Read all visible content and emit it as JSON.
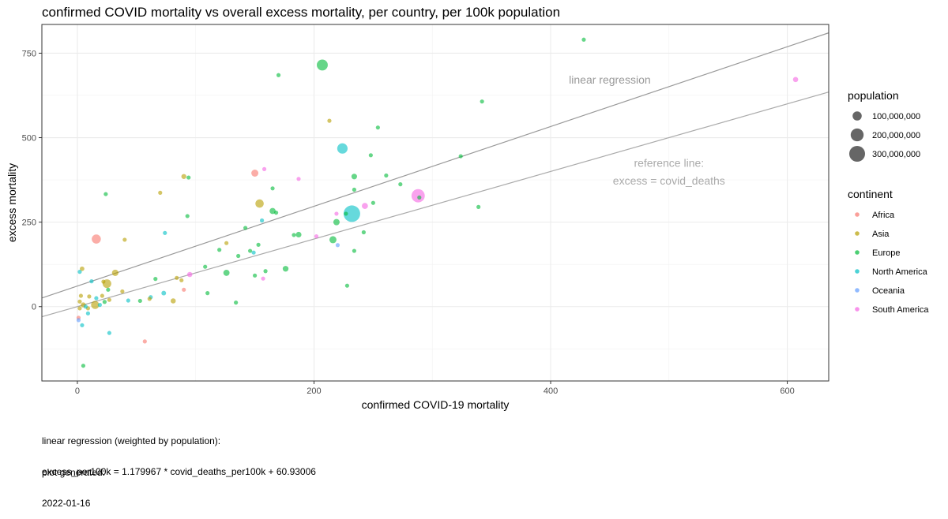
{
  "chart_data": {
    "type": "scatter",
    "title": "confirmed COVID mortality vs overall excess mortality, per country, per 100k population",
    "xlabel": "confirmed COVID-19 mortality",
    "ylabel": "excess mortality",
    "xlim": [
      -30,
      635
    ],
    "ylim": [
      -220,
      835
    ],
    "x_ticks": [
      0,
      200,
      400,
      600
    ],
    "y_ticks": [
      0,
      250,
      500,
      750
    ],
    "x_tick_labels": [
      "0",
      "200",
      "400",
      "600"
    ],
    "y_tick_labels": [
      "0",
      "250",
      "500",
      "750"
    ],
    "grid": true,
    "legend_position": "right",
    "size_legend": {
      "title": "population",
      "entries": [
        {
          "label": "100,000,000",
          "value": 100000000
        },
        {
          "label": "200,000,000",
          "value": 200000000
        },
        {
          "label": "300,000,000",
          "value": 300000000
        }
      ]
    },
    "color_legend": {
      "title": "continent",
      "entries": [
        {
          "label": "Africa",
          "color": "#F8766D"
        },
        {
          "label": "Asia",
          "color": "#B79F00"
        },
        {
          "label": "Europe",
          "color": "#00BA38"
        },
        {
          "label": "North America",
          "color": "#00BFC4"
        },
        {
          "label": "Oceania",
          "color": "#619CFF"
        },
        {
          "label": "South America",
          "color": "#F564E3"
        }
      ]
    },
    "lines": [
      {
        "name": "linear regression",
        "slope": 1.179967,
        "intercept": 60.93006,
        "color": "#999999",
        "label_x": 450,
        "label_y": 672
      },
      {
        "name": "reference line: excess = covid_deaths",
        "slope": 1,
        "intercept": 0,
        "color": "#aaaaaa",
        "label_x": 500,
        "label_y": 390
      }
    ],
    "annotations": [
      {
        "text": "linear regression",
        "x": 450,
        "y": 672
      },
      {
        "text": "reference line:",
        "x": 500,
        "y": 425
      },
      {
        "text": "excess = covid_deaths",
        "x": 500,
        "y": 373
      }
    ],
    "points": [
      {
        "x": 428,
        "y": 790,
        "continent": "Europe",
        "pop": 2000000
      },
      {
        "x": 207,
        "y": 715,
        "continent": "Europe",
        "pop": 145000000
      },
      {
        "x": 170,
        "y": 685,
        "continent": "Europe",
        "pop": 7000000
      },
      {
        "x": 607,
        "y": 672,
        "continent": "South America",
        "pop": 33000000
      },
      {
        "x": 342,
        "y": 607,
        "continent": "Europe",
        "pop": 2800000
      },
      {
        "x": 213,
        "y": 550,
        "continent": "Asia",
        "pop": 3000000
      },
      {
        "x": 254,
        "y": 530,
        "continent": "Europe",
        "pop": 4000000
      },
      {
        "x": 224,
        "y": 468,
        "continent": "North America",
        "pop": 129000000
      },
      {
        "x": 248,
        "y": 448,
        "continent": "Europe",
        "pop": 19000000
      },
      {
        "x": 324,
        "y": 445,
        "continent": "Europe",
        "pop": 2000000
      },
      {
        "x": 150,
        "y": 395,
        "continent": "Africa",
        "pop": 60000000
      },
      {
        "x": 158,
        "y": 407,
        "continent": "South America",
        "pop": 12000000
      },
      {
        "x": 90,
        "y": 385,
        "continent": "Asia",
        "pop": 30000000
      },
      {
        "x": 94,
        "y": 382,
        "continent": "Europe",
        "pop": 4000000
      },
      {
        "x": 187,
        "y": 378,
        "continent": "South America",
        "pop": 19000000
      },
      {
        "x": 234,
        "y": 385,
        "continent": "Europe",
        "pop": 38000000
      },
      {
        "x": 261,
        "y": 388,
        "continent": "Europe",
        "pop": 9000000
      },
      {
        "x": 273,
        "y": 362,
        "continent": "Europe",
        "pop": 2000000
      },
      {
        "x": 165,
        "y": 350,
        "continent": "Europe",
        "pop": 5000000
      },
      {
        "x": 234,
        "y": 346,
        "continent": "Europe",
        "pop": 4000000
      },
      {
        "x": 24,
        "y": 333,
        "continent": "Europe",
        "pop": 10000000
      },
      {
        "x": 70,
        "y": 337,
        "continent": "Asia",
        "pop": 17000000
      },
      {
        "x": 288,
        "y": 328,
        "continent": "South America",
        "pop": 213000000
      },
      {
        "x": 289,
        "y": 323,
        "continent": "Europe",
        "pop": 10000000
      },
      {
        "x": 154,
        "y": 305,
        "continent": "Asia",
        "pop": 84000000
      },
      {
        "x": 243,
        "y": 298,
        "continent": "South America",
        "pop": 45000000
      },
      {
        "x": 250,
        "y": 307,
        "continent": "Europe",
        "pop": 2000000
      },
      {
        "x": 232,
        "y": 275,
        "continent": "North America",
        "pop": 330000000
      },
      {
        "x": 339,
        "y": 295,
        "continent": "Europe",
        "pop": 7000000
      },
      {
        "x": 165,
        "y": 283,
        "continent": "Europe",
        "pop": 44000000
      },
      {
        "x": 168,
        "y": 278,
        "continent": "Europe",
        "pop": 9000000
      },
      {
        "x": 219,
        "y": 275,
        "continent": "South America",
        "pop": 11000000
      },
      {
        "x": 227,
        "y": 275,
        "continent": "Europe",
        "pop": 2000000
      },
      {
        "x": 93,
        "y": 268,
        "continent": "Europe",
        "pop": 3000000
      },
      {
        "x": 156,
        "y": 255,
        "continent": "North America",
        "pop": 2000000
      },
      {
        "x": 219,
        "y": 250,
        "continent": "Europe",
        "pop": 48000000
      },
      {
        "x": 142,
        "y": 233,
        "continent": "Europe",
        "pop": 3000000
      },
      {
        "x": 16,
        "y": 200,
        "continent": "Africa",
        "pop": 100000000
      },
      {
        "x": 74,
        "y": 218,
        "continent": "North America",
        "pop": 15000000
      },
      {
        "x": 40,
        "y": 198,
        "continent": "Asia",
        "pop": 8000000
      },
      {
        "x": 187,
        "y": 213,
        "continent": "Europe",
        "pop": 38000000
      },
      {
        "x": 183,
        "y": 212,
        "continent": "Europe",
        "pop": 10000000
      },
      {
        "x": 216,
        "y": 198,
        "continent": "Europe",
        "pop": 60000000
      },
      {
        "x": 202,
        "y": 208,
        "continent": "South America",
        "pop": 17000000
      },
      {
        "x": 242,
        "y": 220,
        "continent": "Europe",
        "pop": 5000000
      },
      {
        "x": 126,
        "y": 188,
        "continent": "Asia",
        "pop": 6000000
      },
      {
        "x": 153,
        "y": 183,
        "continent": "Europe",
        "pop": 10000000
      },
      {
        "x": 220,
        "y": 182,
        "continent": "Oceania",
        "pop": 5000000
      },
      {
        "x": 120,
        "y": 168,
        "continent": "Europe",
        "pop": 11000000
      },
      {
        "x": 146,
        "y": 165,
        "continent": "Europe",
        "pop": 10000000
      },
      {
        "x": 149,
        "y": 160,
        "continent": "North America",
        "pop": 5000000
      },
      {
        "x": 234,
        "y": 165,
        "continent": "Europe",
        "pop": 10000000
      },
      {
        "x": 136,
        "y": 150,
        "continent": "Europe",
        "pop": 7000000
      },
      {
        "x": 4,
        "y": 112,
        "continent": "Asia",
        "pop": 25000000
      },
      {
        "x": 176,
        "y": 112,
        "continent": "Europe",
        "pop": 40000000
      },
      {
        "x": 126,
        "y": 100,
        "continent": "Europe",
        "pop": 46000000
      },
      {
        "x": 32,
        "y": 100,
        "continent": "Asia",
        "pop": 50000000
      },
      {
        "x": 2,
        "y": 103,
        "continent": "North America",
        "pop": 3000000
      },
      {
        "x": 108,
        "y": 118,
        "continent": "Europe",
        "pop": 2000000
      },
      {
        "x": 95,
        "y": 95,
        "continent": "South America",
        "pop": 32000000
      },
      {
        "x": 159,
        "y": 105,
        "continent": "Europe",
        "pop": 2000000
      },
      {
        "x": 150,
        "y": 92,
        "continent": "Europe",
        "pop": 9000000
      },
      {
        "x": 84,
        "y": 85,
        "continent": "Asia",
        "pop": 6000000
      },
      {
        "x": 157,
        "y": 83,
        "continent": "South America",
        "pop": 7000000
      },
      {
        "x": 66,
        "y": 82,
        "continent": "Europe",
        "pop": 3000000
      },
      {
        "x": 88,
        "y": 78,
        "continent": "Asia",
        "pop": 7000000
      },
      {
        "x": 12,
        "y": 75,
        "continent": "North America",
        "pop": 7000000
      },
      {
        "x": 22,
        "y": 74,
        "continent": "Asia",
        "pop": 8000000
      },
      {
        "x": 25,
        "y": 68,
        "continent": "Asia",
        "pop": 90000000
      },
      {
        "x": 26,
        "y": 50,
        "continent": "Europe",
        "pop": 6000000
      },
      {
        "x": 90,
        "y": 50,
        "continent": "Africa",
        "pop": 11000000
      },
      {
        "x": 38,
        "y": 45,
        "continent": "Asia",
        "pop": 6000000
      },
      {
        "x": 73,
        "y": 40,
        "continent": "North America",
        "pop": 26000000
      },
      {
        "x": 110,
        "y": 40,
        "continent": "Europe",
        "pop": 8000000
      },
      {
        "x": 3,
        "y": 32,
        "continent": "Asia",
        "pop": 4000000
      },
      {
        "x": 10,
        "y": 30,
        "continent": "Asia",
        "pop": 3000000
      },
      {
        "x": 21,
        "y": 32,
        "continent": "Asia",
        "pop": 5000000
      },
      {
        "x": 16,
        "y": 25,
        "continent": "North America",
        "pop": 3000000
      },
      {
        "x": 62,
        "y": 28,
        "continent": "North America",
        "pop": 3000000
      },
      {
        "x": 61,
        "y": 23,
        "continent": "Asia",
        "pop": 6000000
      },
      {
        "x": 27,
        "y": 20,
        "continent": "Asia",
        "pop": 5000000
      },
      {
        "x": 43,
        "y": 18,
        "continent": "North America",
        "pop": 7000000
      },
      {
        "x": 53,
        "y": 17,
        "continent": "Europe",
        "pop": 7000000
      },
      {
        "x": 81,
        "y": 17,
        "continent": "Asia",
        "pop": 32000000
      },
      {
        "x": 23,
        "y": 14,
        "continent": "Europe",
        "pop": 7000000
      },
      {
        "x": 134,
        "y": 12,
        "continent": "Europe",
        "pop": 3000000
      },
      {
        "x": 2,
        "y": 15,
        "continent": "Asia",
        "pop": 3000000
      },
      {
        "x": 5,
        "y": 5,
        "continent": "Asia",
        "pop": 30000000
      },
      {
        "x": 15,
        "y": 5,
        "continent": "Asia",
        "pop": 80000000
      },
      {
        "x": 19,
        "y": 5,
        "continent": "North America",
        "pop": 3000000
      },
      {
        "x": 2,
        "y": -5,
        "continent": "Asia",
        "pop": 20000000
      },
      {
        "x": 9,
        "y": -5,
        "continent": "Asia",
        "pop": 5000000
      },
      {
        "x": 7,
        "y": 0,
        "continent": "North America",
        "pop": 3000000
      },
      {
        "x": 9,
        "y": -20,
        "continent": "North America",
        "pop": 4000000
      },
      {
        "x": 1,
        "y": -33,
        "continent": "Africa",
        "pop": 4000000
      },
      {
        "x": 1,
        "y": -40,
        "continent": "Oceania",
        "pop": 6000000
      },
      {
        "x": 4,
        "y": -55,
        "continent": "North America",
        "pop": 2000000
      },
      {
        "x": 27,
        "y": -78,
        "continent": "North America",
        "pop": 2000000
      },
      {
        "x": 57,
        "y": -103,
        "continent": "Africa",
        "pop": 2000000
      },
      {
        "x": 228,
        "y": 62,
        "continent": "Europe",
        "pop": 2000000
      },
      {
        "x": 5,
        "y": -175,
        "continent": "Europe",
        "pop": 2000000
      }
    ]
  },
  "captions": {
    "regression_line1": "linear regression (weighted by population):",
    "regression_line2": "excess_per100k = 1.179967 * covid_deaths_per100k + 60.93006",
    "generated_label": "plot generated:",
    "generated_date": "2022-01-16"
  }
}
